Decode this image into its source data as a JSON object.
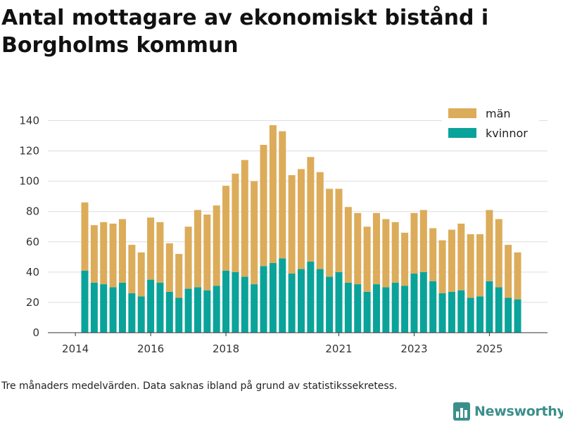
{
  "chart_data": {
    "type": "bar",
    "stacked": true,
    "title": "Antal mottagare av ekonomiskt bistånd i Borgholms kommun",
    "xlabel": "",
    "ylabel": "",
    "ylim": [
      0,
      150
    ],
    "yticks": [
      0,
      20,
      40,
      60,
      80,
      100,
      120,
      140
    ],
    "xticks": [
      {
        "label": "2014",
        "index": -1
      },
      {
        "label": "2016",
        "index": 7
      },
      {
        "label": "2018",
        "index": 15
      },
      {
        "label": "2021",
        "index": 27
      },
      {
        "label": "2023",
        "index": 35
      },
      {
        "label": "2025",
        "index": 43
      }
    ],
    "grid": true,
    "legend_position": "top-right",
    "series": [
      {
        "name": "kvinnor",
        "color": "#0aa39a",
        "values": [
          41,
          33,
          32,
          30,
          33,
          26,
          24,
          35,
          33,
          27,
          23,
          29,
          30,
          28,
          31,
          41,
          40,
          37,
          32,
          44,
          46,
          49,
          39,
          42,
          47,
          42,
          37,
          40,
          33,
          32,
          27,
          32,
          30,
          33,
          31,
          39,
          40,
          34,
          26,
          27,
          28,
          23,
          24,
          34,
          30,
          23,
          22
        ]
      },
      {
        "name": "män",
        "color": "#dcac5a",
        "values": [
          45,
          38,
          41,
          42,
          42,
          32,
          29,
          41,
          40,
          32,
          29,
          41,
          51,
          50,
          53,
          56,
          65,
          77,
          68,
          80,
          91,
          84,
          65,
          66,
          69,
          64,
          58,
          55,
          50,
          47,
          43,
          47,
          45,
          40,
          35,
          40,
          41,
          35,
          35,
          41,
          44,
          42,
          41,
          47,
          45,
          35,
          31
        ]
      }
    ]
  },
  "legend": {
    "items": [
      {
        "label": "män",
        "color": "#dcac5a"
      },
      {
        "label": "kvinnor",
        "color": "#0aa39a"
      }
    ]
  },
  "footnote": "Tre månaders medelvärden. Data saknas ibland på grund av statistikssekretess.",
  "brand": {
    "name": "Newsworthy",
    "icon": "bar-chart-logo-icon",
    "color": "#3a8f8a"
  }
}
